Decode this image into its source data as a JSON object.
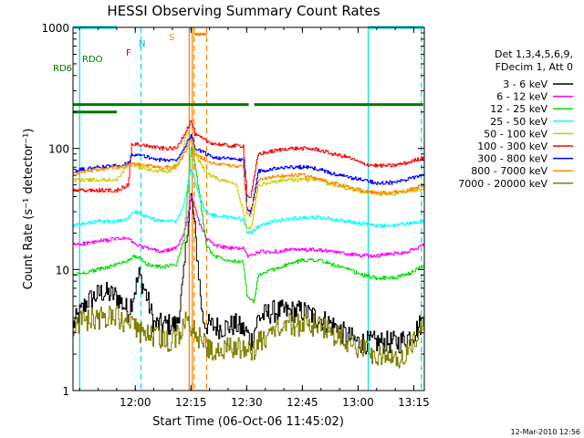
{
  "chart_data": {
    "type": "line",
    "title": "HESSI Observing Summary Count Rates",
    "xlabel": "Start Time (06-Oct-06 11:45:02)",
    "ylabel": "Count Rate (s⁻¹ detector⁻¹)",
    "y_scale": "log",
    "ylim": [
      1,
      1000
    ],
    "xlim_minutes": [
      -1.8,
      80
    ],
    "x_ticks": [
      {
        "label": "12:00",
        "min": 14.97
      },
      {
        "label": "12:15",
        "min": 29.97
      },
      {
        "label": "12:30",
        "min": 44.97
      },
      {
        "label": "12:45",
        "min": 59.97
      },
      {
        "label": "13:00",
        "min": 74.97
      },
      {
        "label": "13:15",
        "min": 89.97
      }
    ],
    "y_ticks": [
      {
        "label": "1",
        "value": 1
      },
      {
        "label": "10",
        "value": 10
      },
      {
        "label": "100",
        "value": 100
      },
      {
        "label": "1000",
        "value": 1000
      }
    ],
    "legend_title_1": "Det 1,3,4,5,6,9,",
    "legend_title_2": "FDecim 1, Att 0",
    "legend_placement": "right",
    "series": [
      {
        "name": "3 - 6 keV",
        "color": "#000000",
        "x": [
          -1.8,
          2,
          6,
          10,
          13,
          16,
          18,
          20,
          22,
          26,
          27,
          28,
          29,
          30,
          31,
          33,
          34,
          38,
          42,
          45,
          46,
          48,
          52,
          56,
          60,
          64,
          68,
          72,
          75,
          78,
          82,
          86,
          90,
          93
        ],
        "y": [
          3.5,
          5.5,
          6.5,
          6,
          4.5,
          9,
          6,
          3.5,
          3.5,
          3.5,
          5,
          9,
          25,
          40,
          20,
          4,
          3.5,
          3.3,
          3.5,
          3,
          2.5,
          4,
          4.5,
          4.5,
          4.5,
          4,
          3.5,
          2.8,
          2.5,
          2.5,
          2.5,
          2.5,
          3,
          4
        ]
      },
      {
        "name": "6 - 12 keV",
        "color": "#ff00ff",
        "x": [
          -1.8,
          5,
          10,
          13,
          15,
          18,
          22,
          26,
          28,
          30,
          32,
          34,
          36,
          40,
          44,
          45,
          46,
          48,
          52,
          56,
          60,
          64,
          68,
          72,
          76,
          80,
          84,
          88,
          93
        ],
        "y": [
          16,
          17,
          18,
          18,
          16,
          15,
          14,
          15,
          20,
          40,
          25,
          18,
          16,
          15,
          15,
          13,
          13,
          14,
          14,
          14.5,
          14.5,
          14.5,
          14,
          13.5,
          13,
          13,
          13.5,
          14,
          16
        ]
      },
      {
        "name": "12 - 25 keV",
        "color": "#00dd00",
        "x": [
          -1.8,
          5,
          10,
          13,
          15,
          18,
          22,
          26,
          28,
          30,
          32,
          34,
          36,
          40,
          44,
          45,
          46,
          47,
          48,
          52,
          56,
          60,
          64,
          68,
          72,
          76,
          80,
          84,
          88,
          93
        ],
        "y": [
          9,
          10,
          11,
          12,
          13,
          11,
          10.5,
          11,
          18,
          110,
          45,
          16,
          13,
          12,
          11.5,
          6,
          5.5,
          5.5,
          9,
          10,
          11,
          12,
          12,
          11,
          10,
          9,
          8.5,
          8.5,
          9,
          11
        ]
      },
      {
        "name": "25 - 50 keV",
        "color": "#00ffff",
        "x": [
          -1.8,
          5,
          10,
          13,
          15,
          18,
          22,
          26,
          28,
          30,
          32,
          34,
          36,
          40,
          44,
          45,
          46,
          48,
          52,
          56,
          60,
          64,
          68,
          72,
          76,
          80,
          84,
          88,
          93
        ],
        "y": [
          23,
          25,
          25,
          27,
          30,
          27,
          25,
          25,
          35,
          70,
          40,
          30,
          28,
          27,
          26,
          20,
          20,
          23,
          25,
          26,
          27,
          27,
          26,
          25,
          24,
          23,
          23,
          24,
          25
        ]
      },
      {
        "name": "50 - 100 keV",
        "color": "#cccc00",
        "x": [
          -1.8,
          2,
          6,
          10,
          13,
          16,
          20,
          24,
          27,
          29,
          31,
          33,
          35,
          38,
          42,
          45,
          46,
          48,
          52,
          56,
          60,
          64,
          68,
          72,
          76,
          80,
          84,
          88,
          93
        ],
        "y": [
          55,
          55,
          55,
          55,
          75,
          70,
          65,
          65,
          80,
          140,
          90,
          70,
          60,
          55,
          52,
          22,
          22,
          50,
          53,
          55,
          55,
          55,
          50,
          47,
          44,
          42,
          42,
          44,
          47
        ]
      },
      {
        "name": "100 - 300 keV",
        "color": "#ff0000",
        "x": [
          -1.8,
          2,
          6,
          10,
          13,
          14,
          18,
          22,
          26,
          28,
          30,
          31,
          34,
          36,
          40,
          44,
          45,
          46,
          48,
          52,
          56,
          60,
          64,
          68,
          72,
          76,
          80,
          84,
          88,
          93
        ],
        "y": [
          45,
          45,
          45,
          45,
          50,
          110,
          105,
          100,
          100,
          130,
          170,
          130,
          115,
          110,
          105,
          105,
          40,
          40,
          90,
          95,
          100,
          100,
          98,
          90,
          85,
          75,
          72,
          72,
          76,
          85
        ]
      },
      {
        "name": "300 - 800 keV",
        "color": "#0000ff",
        "x": [
          -1.8,
          2,
          6,
          10,
          13,
          14,
          18,
          22,
          26,
          28,
          30,
          31,
          34,
          36,
          40,
          44,
          45,
          46,
          48,
          52,
          56,
          60,
          64,
          68,
          72,
          76,
          80,
          84,
          88,
          93
        ],
        "y": [
          65,
          68,
          70,
          72,
          75,
          90,
          85,
          80,
          80,
          100,
          130,
          100,
          90,
          85,
          82,
          80,
          30,
          30,
          65,
          68,
          70,
          70,
          68,
          62,
          58,
          55,
          52,
          52,
          55,
          62
        ]
      },
      {
        "name": "800 - 7000 keV",
        "color": "#ff8800",
        "x": [
          -1.8,
          2,
          6,
          10,
          13,
          14,
          18,
          22,
          26,
          28,
          30,
          31,
          34,
          36,
          40,
          44,
          45,
          46,
          48,
          52,
          56,
          60,
          64,
          68,
          72,
          76,
          80,
          84,
          88,
          93
        ],
        "y": [
          62,
          65,
          68,
          70,
          72,
          75,
          72,
          70,
          70,
          90,
          120,
          90,
          80,
          75,
          72,
          70,
          28,
          28,
          55,
          58,
          60,
          60,
          56,
          52,
          48,
          45,
          43,
          43,
          45,
          50
        ]
      },
      {
        "name": "7000 - 20000 keV",
        "color": "#808000",
        "x": [
          -1.8,
          2,
          6,
          10,
          13,
          16,
          20,
          24,
          27,
          29,
          31,
          33,
          35,
          38,
          42,
          45,
          46,
          48,
          52,
          56,
          60,
          64,
          68,
          72,
          76,
          80,
          84,
          88,
          93
        ],
        "y": [
          3.5,
          3.8,
          4,
          4,
          3.5,
          3,
          2.8,
          2.5,
          3,
          4,
          3,
          2.5,
          2.2,
          2.2,
          2.3,
          2.2,
          2,
          2.5,
          3,
          3.5,
          3.5,
          3.5,
          3,
          2.5,
          2.2,
          2,
          1.8,
          2,
          3.5
        ]
      }
    ],
    "vertical_markers": [
      {
        "min": 0,
        "style": "solid",
        "color": "#00e5ee"
      },
      {
        "min": 16.5,
        "style": "dashed",
        "color": "#00e5ee"
      },
      {
        "min": 29.5,
        "style": "solid",
        "color": "#ff8800"
      },
      {
        "min": 30.3,
        "style": "solid",
        "color": "#ff8800"
      },
      {
        "min": 30.8,
        "style": "dashed",
        "color": "#ff8800"
      },
      {
        "min": 34.2,
        "style": "dashed",
        "color": "#ff8800"
      },
      {
        "min": 77.7,
        "style": "solid",
        "color": "#00e5ee"
      },
      {
        "min": 92.0,
        "style": "dashed",
        "color": "#00e5ee"
      }
    ],
    "flag_bars": [
      {
        "name": "night",
        "color": "#00e5ee",
        "y": 1100,
        "segments": [
          [
            -1.8,
            10
          ],
          [
            77.7,
            92.5
          ]
        ]
      },
      {
        "name": "saa",
        "color": "#ff8800",
        "y": 880,
        "segments": [
          [
            30.8,
            34.2
          ]
        ]
      },
      {
        "name": "decimation",
        "color": "#007700",
        "y": 230,
        "segments": [
          [
            -1.8,
            45.5
          ],
          [
            47,
            92.5
          ]
        ]
      },
      {
        "name": "rd6",
        "color": "#007700",
        "y": 200,
        "segments": [
          [
            -1.8,
            10
          ]
        ]
      }
    ],
    "flag_labels": [
      {
        "text": "RDO",
        "color": "#007700"
      },
      {
        "text": "RD6",
        "color": "#007700"
      },
      {
        "text": "F",
        "color": "#dd0000"
      },
      {
        "text": "N",
        "color": "#00aaee"
      },
      {
        "text": "S",
        "color": "#ff8800"
      }
    ]
  },
  "footer": {
    "timestamp": "12-Mar-2010 12:56"
  }
}
